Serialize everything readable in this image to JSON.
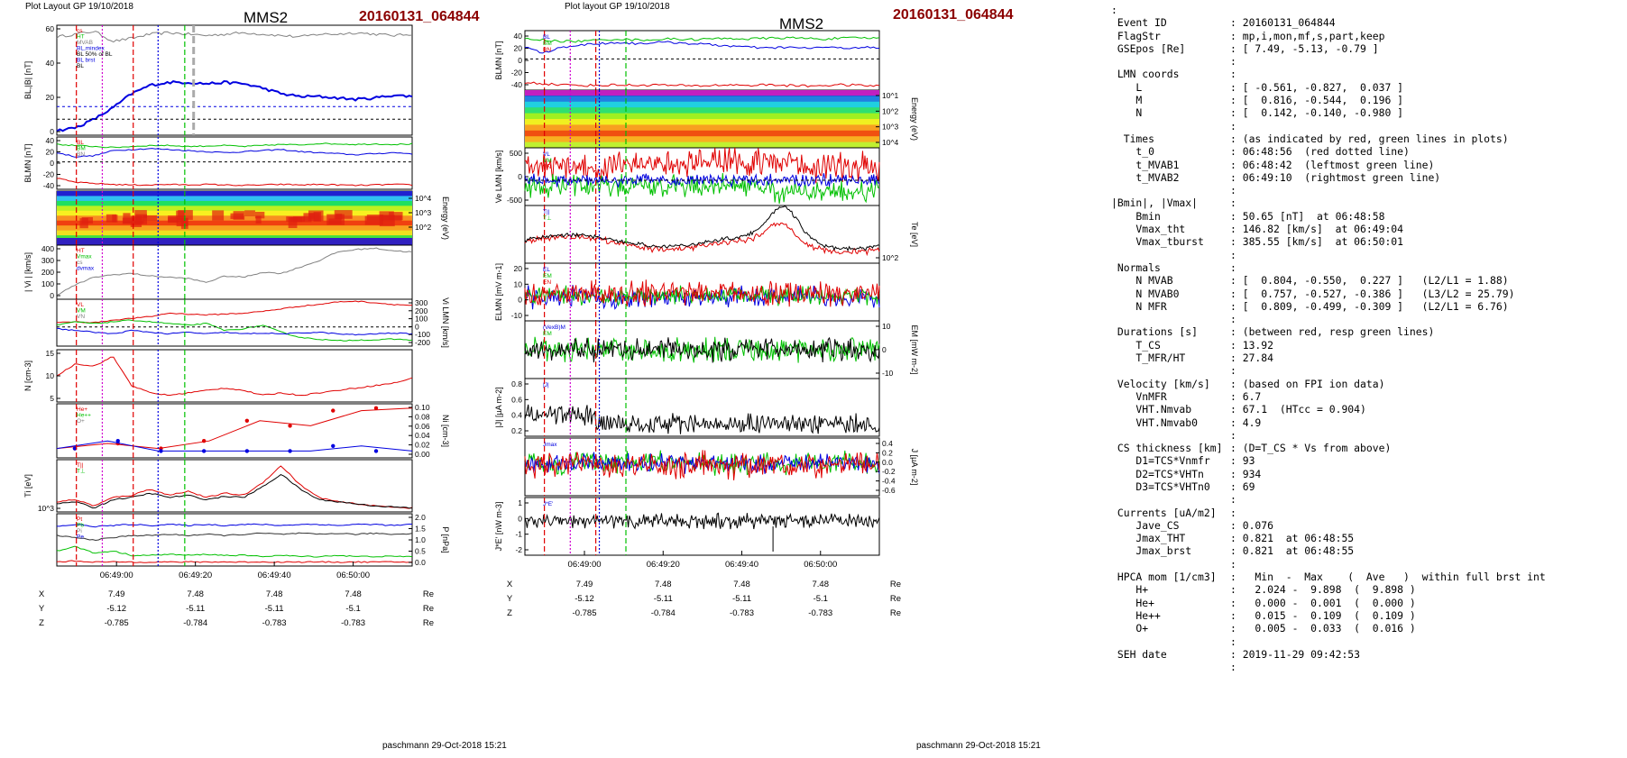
{
  "left_panel": {
    "header": "Plot Layout GP 19/10/2018",
    "spacecraft": "MMS2",
    "event": "20160131_064844",
    "footer": "paschmann 29-Oct-2018 15:21"
  },
  "middle_panel": {
    "header": "Plot layout GP 19/10/2018",
    "spacecraft": "MMS2",
    "event": "20160131_064844",
    "footer": "paschmann 29-Oct-2018 15:21"
  },
  "time_ticks": [
    "06:49:00",
    "06:49:20",
    "06:49:40",
    "06:50:00"
  ],
  "ephemeris": {
    "labels": [
      "X",
      "Y",
      "Z"
    ],
    "unit": "Re",
    "left_values": [
      [
        "7.49",
        "7.48",
        "7.48",
        "7.48"
      ],
      [
        "-5.12",
        "-5.11",
        "-5.11",
        "-5.1"
      ],
      [
        "-0.785",
        "-0.784",
        "-0.783",
        "-0.783"
      ]
    ],
    "middle_values": [
      [
        "7.49",
        "7.48",
        "7.48",
        "7.48"
      ],
      [
        "-5.12",
        "-5.11",
        "-5.11",
        "-5.1"
      ],
      [
        "-0.785",
        "-0.784",
        "-0.783",
        "-0.783"
      ]
    ]
  },
  "colors": {
    "event": "#8b0000",
    "red": "#e00000",
    "green": "#00c000",
    "blue": "#0000e0",
    "magenta": "#d000d0",
    "grey": "#808080"
  },
  "chart_data": [
    {
      "type": "line",
      "panel": "left-1",
      "ylabel": "BL,|B| [nT]",
      "ylim": [
        -10,
        65
      ],
      "ticks": [
        "0",
        "20",
        "40",
        "60"
      ],
      "legend": [
        "cs",
        "HT",
        "MVAB",
        "BL,mindex",
        "BL 50% of BL",
        "BL brst",
        "BL"
      ],
      "series": [
        {
          "name": "|B|",
          "values": [
            58,
            60,
            62,
            55,
            57,
            60,
            61,
            60,
            59,
            60,
            61,
            60,
            59,
            58,
            60,
            60,
            61,
            60,
            59,
            60
          ]
        },
        {
          "name": "BL",
          "values": [
            -8,
            -6,
            0,
            8,
            18,
            24,
            26,
            26,
            25,
            26,
            25,
            22,
            18,
            16,
            16,
            15,
            14,
            15,
            17,
            16
          ]
        }
      ]
    },
    {
      "type": "line",
      "panel": "left-2",
      "ylabel": "BLMN [nT]",
      "ylim": [
        -50,
        45
      ],
      "ticks": [
        "-40",
        "-20",
        "0",
        "20",
        "40"
      ],
      "legend": [
        "BL",
        "BM",
        "BN"
      ],
      "series": [
        {
          "name": "BL",
          "values": [
            18,
            10,
            12,
            22,
            24,
            26,
            24,
            22,
            20,
            18,
            20,
            22,
            24,
            20,
            18,
            16,
            14,
            16,
            18,
            16
          ]
        },
        {
          "name": "BM",
          "values": [
            34,
            32,
            30,
            28,
            30,
            32,
            32,
            30,
            31,
            32,
            30,
            32,
            34,
            33,
            36,
            35,
            34,
            35,
            34,
            35
          ]
        },
        {
          "name": "BN",
          "values": [
            -32,
            -40,
            -42,
            -44,
            -45,
            -45,
            -44,
            -45,
            -44,
            -45,
            -46,
            -45,
            -44,
            -45,
            -44,
            -45,
            -46,
            -45,
            -44,
            -45
          ]
        }
      ]
    },
    {
      "type": "heatmap",
      "panel": "left-3",
      "ylabel": "Energy (eV)",
      "ticks": [
        "10^4",
        "10^3",
        "10^2"
      ]
    },
    {
      "type": "line",
      "panel": "left-4",
      "ylabel": "| Vi | [km/s]",
      "ylim": [
        0,
        400
      ],
      "ticks": [
        "0",
        "100",
        "200",
        "300",
        "400"
      ],
      "legend": [
        "HT",
        "Vmax",
        "cs",
        "dvmax"
      ],
      "series": [
        {
          "name": "|Vi|",
          "values": [
            20,
            100,
            160,
            180,
            190,
            170,
            160,
            150,
            120,
            170,
            160,
            200,
            190,
            240,
            290,
            360,
            380,
            390,
            370,
            360
          ]
        }
      ]
    },
    {
      "type": "line",
      "panel": "left-5",
      "ylabel": "Vi LMN [km/s]",
      "ylim": [
        -200,
        300
      ],
      "ticks": [
        "-200",
        "-100",
        "0",
        "100",
        "200",
        "300"
      ],
      "legend": [
        "VL",
        "VM",
        "VN"
      ],
      "series": [
        {
          "name": "VL",
          "values": [
            50,
            60,
            50,
            80,
            100,
            120,
            160,
            150,
            140,
            150,
            160,
            180,
            210,
            240,
            260,
            290,
            300,
            280,
            260,
            250
          ]
        },
        {
          "name": "VM",
          "values": [
            20,
            60,
            40,
            60,
            80,
            60,
            40,
            20,
            40,
            -40,
            -20,
            20,
            -60,
            -120,
            -140,
            -160,
            -150,
            -150,
            -140,
            -150
          ]
        },
        {
          "name": "VN",
          "values": [
            -20,
            -40,
            -60,
            -80,
            -40,
            -60,
            -80,
            -60,
            -80,
            -60,
            -80,
            -70,
            -80,
            -70,
            -60,
            -80,
            -90,
            -80,
            -70,
            -80
          ]
        }
      ]
    },
    {
      "type": "line",
      "panel": "left-6",
      "ylabel": "N [cm-3]",
      "ylim": [
        0,
        20
      ],
      "ticks": [
        "5",
        "10",
        "15"
      ],
      "series": [
        {
          "name": "N",
          "values": [
            10,
            15,
            14,
            18,
            6,
            3,
            2,
            3,
            4,
            5,
            4,
            2,
            3,
            2,
            3,
            4,
            5,
            6,
            7,
            9
          ]
        }
      ]
    },
    {
      "type": "line",
      "panel": "left-7",
      "ylabel": "Ni [cm-3]",
      "ylim": [
        0,
        0.1
      ],
      "ticks": [
        "0.00",
        "0.02",
        "0.04",
        "0.06",
        "0.08",
        "0.10"
      ],
      "legend": [
        "He+",
        "He++",
        "O+"
      ],
      "series": [
        {
          "name": "He++",
          "values": [
            0.015,
            0.025,
            0.015,
            0.03,
            0.07,
            0.06,
            0.09,
            0.095
          ]
        },
        {
          "name": "O+",
          "values": [
            0.015,
            0.03,
            0.01,
            0.01,
            0.01,
            0.01,
            0.02,
            0.01
          ]
        }
      ]
    },
    {
      "type": "line",
      "panel": "left-8",
      "ylabel": "Ti [eV]",
      "ticks": [
        "10^3"
      ],
      "legend": [
        "T||",
        "T⊥"
      ],
      "series": [
        {
          "name": "Ti par",
          "values": [
            700,
            800,
            500,
            900,
            1000,
            1300,
            1000,
            1200,
            900,
            1100,
            1000,
            1600,
            2400,
            1500,
            900,
            700,
            600,
            500,
            450,
            400
          ]
        },
        {
          "name": "Ti perp",
          "values": [
            600,
            700,
            400,
            800,
            900,
            1100,
            900,
            1000,
            800,
            950,
            900,
            1400,
            2000,
            1300,
            800,
            700,
            600,
            500,
            450,
            400
          ]
        }
      ]
    },
    {
      "type": "line",
      "panel": "left-9",
      "ylabel": "P [nPa]",
      "ylim": [
        0,
        2.2
      ],
      "ticks": [
        "0.0",
        "0.5",
        "1.0",
        "1.5",
        "2.0"
      ],
      "legend": [
        "Pt",
        "Pb",
        "Pi",
        "Pe"
      ],
      "series": [
        {
          "name": "Ptot",
          "values": [
            1.7,
            1.8,
            1.7,
            1.75,
            1.8,
            1.75,
            1.8,
            1.75,
            1.8,
            1.75,
            1.8,
            1.8,
            1.75,
            1.8,
            1.8,
            1.75,
            1.8,
            1.8,
            1.75,
            1.8
          ]
        },
        {
          "name": "Pb",
          "values": [
            1.3,
            1.2,
            1.1,
            1.2,
            1.3,
            1.3,
            1.35,
            1.3,
            1.35,
            1.3,
            1.35,
            1.4,
            1.35,
            1.4,
            1.35,
            1.4,
            1.35,
            1.4,
            1.35,
            1.4
          ]
        },
        {
          "name": "Pi",
          "values": [
            0.6,
            0.8,
            0.5,
            0.6,
            0.4,
            0.4,
            0.45,
            0.4,
            0.45,
            0.4,
            0.4,
            0.35,
            0.4,
            0.35,
            0.35,
            0.4,
            0.35,
            0.35,
            0.35,
            0.35
          ]
        },
        {
          "name": "Pe",
          "values": [
            0.1,
            0.15,
            0.1,
            0.1,
            0.1,
            0.1,
            0.1,
            0.1,
            0.1,
            0.1,
            0.1,
            0.1,
            0.1,
            0.1,
            0.1,
            0.1,
            0.1,
            0.1,
            0.1,
            0.1
          ]
        }
      ]
    },
    {
      "type": "line",
      "panel": "mid-1",
      "ylabel": "BLMN [nT]",
      "ylim": [
        -50,
        45
      ],
      "ticks": [
        "-40",
        "-20",
        "0",
        "20",
        "40"
      ],
      "legend": [
        "BL",
        "BM",
        "BN"
      ],
      "series": [
        {
          "name": "BL",
          "values": [
            20,
            10,
            20,
            24,
            26,
            28,
            26,
            28,
            28,
            26,
            24,
            22,
            20,
            18,
            20,
            18,
            20,
            18,
            20,
            18
          ]
        },
        {
          "name": "BM",
          "values": [
            34,
            32,
            30,
            30,
            32,
            34,
            32,
            33,
            34,
            33,
            34,
            35,
            34,
            35,
            36,
            35,
            34,
            35,
            36,
            35
          ]
        },
        {
          "name": "BN",
          "values": [
            -40,
            -42,
            -44,
            -45,
            -45,
            -44,
            -45,
            -44,
            -45,
            -46,
            -45,
            -44,
            -45,
            -44,
            -45,
            -46,
            -45,
            -44,
            -45,
            -46
          ]
        }
      ]
    },
    {
      "type": "heatmap",
      "panel": "mid-2",
      "ylabel": "Energy (eV)",
      "ticks": [
        "10^4",
        "10^3",
        "10^2",
        "10^1"
      ]
    },
    {
      "type": "line",
      "panel": "mid-3",
      "ylabel": "Ve LMN [km/s]",
      "ylim": [
        -700,
        800
      ],
      "ticks": [
        "-500",
        "0",
        "500"
      ],
      "legend": [
        "VL",
        "VM",
        "VN"
      ]
    },
    {
      "type": "line",
      "panel": "mid-4",
      "ylabel": "Te [eV]",
      "ticks": [
        "10^2"
      ],
      "legend": [
        "T||",
        "T⊥"
      ]
    },
    {
      "type": "line",
      "panel": "mid-5",
      "ylabel": "ELMN [mV m-1]",
      "ylim": [
        -22,
        22
      ],
      "ticks": [
        "-10",
        "0",
        "10",
        "20"
      ],
      "legend": [
        "EL",
        "EM",
        "EN"
      ]
    },
    {
      "type": "line",
      "panel": "mid-6",
      "ylabel": "EM [mV m-2]",
      "ylim": [
        -15,
        15
      ],
      "ticks": [
        "-10",
        "0",
        "10"
      ],
      "legend": [
        "(VexB)M",
        "EM"
      ]
    },
    {
      "type": "line",
      "panel": "mid-7",
      "ylabel": "|J| [µA m-2]",
      "ylim": [
        0,
        0.85
      ],
      "ticks": [
        "0.2",
        "0.4",
        "0.6",
        "0.8"
      ],
      "legend": [
        "|J|"
      ]
    },
    {
      "type": "line",
      "panel": "mid-8",
      "ylabel": "J [µA m-2]",
      "ylim": [
        -0.7,
        0.5
      ],
      "ticks": [
        "-0.6",
        "-0.4",
        "-0.2",
        "0.0",
        "0.2",
        "0.4"
      ],
      "legend": [
        "Jmax"
      ]
    },
    {
      "type": "line",
      "panel": "mid-9",
      "ylabel": "J*E' [nW m-3]",
      "ylim": [
        -2.5,
        1.5
      ],
      "ticks": [
        "-2",
        "-1",
        "0",
        "1"
      ],
      "legend": [
        "J*E'"
      ]
    }
  ],
  "info": [
    {
      "k": ":",
      "c": ""
    },
    {
      "k": " Event ID",
      "c": ": 20160131_064844"
    },
    {
      "k": " FlagStr",
      "c": ": mp,i,mon,mf,s,part,keep"
    },
    {
      "k": " GSEpos [Re]",
      "c": ": [ 7.49, -5.13, -0.79 ]"
    },
    {
      "k": "",
      "c": ":"
    },
    {
      "k": " LMN coords",
      "c": ":"
    },
    {
      "k": "    L",
      "c": ": [ -0.561, -0.827,  0.037 ]"
    },
    {
      "k": "    M",
      "c": ": [  0.816, -0.544,  0.196 ]"
    },
    {
      "k": "    N",
      "c": ": [  0.142, -0.140, -0.980 ]"
    },
    {
      "k": "",
      "c": ":"
    },
    {
      "k": "  Times",
      "c": ": (as indicated by red, green lines in plots)"
    },
    {
      "k": "    t_0",
      "c": ": 06:48:56  (red dotted line)"
    },
    {
      "k": "    t_MVAB1",
      "c": ": 06:48:42  (leftmost green line)"
    },
    {
      "k": "    t_MVAB2",
      "c": ": 06:49:10  (rightmost green line)"
    },
    {
      "k": "",
      "c": ":"
    },
    {
      "k": "|Bmin|, |Vmax|",
      "c": ":"
    },
    {
      "k": "    Bmin",
      "c": ": 50.65 [nT]  at 06:48:58"
    },
    {
      "k": "    Vmax_tht",
      "c": ": 146.82 [km/s]  at 06:49:04"
    },
    {
      "k": "    Vmax_tburst",
      "c": ": 385.55 [km/s]  at 06:50:01"
    },
    {
      "k": "",
      "c": ":"
    },
    {
      "k": " Normals",
      "c": ":"
    },
    {
      "k": "    N MVAB",
      "c": ": [  0.804, -0.550,  0.227 ]   (L2/L1 = 1.88)"
    },
    {
      "k": "    N MVAB0",
      "c": ": [  0.757, -0.527, -0.386 ]   (L3/L2 = 25.79)"
    },
    {
      "k": "    N MFR",
      "c": ": [  0.809, -0.499, -0.309 ]   (L2/L1 = 6.76)"
    },
    {
      "k": "",
      "c": ":"
    },
    {
      "k": " Durations [s]",
      "c": ": (between red, resp green lines)"
    },
    {
      "k": "    T_CS",
      "c": ": 13.92"
    },
    {
      "k": "    T_MFR/HT",
      "c": ": 27.84"
    },
    {
      "k": "",
      "c": ":"
    },
    {
      "k": " Velocity [km/s]",
      "c": ": (based on FPI ion data)"
    },
    {
      "k": "    VnMFR",
      "c": ": 6.7"
    },
    {
      "k": "    VHT.Nmvab",
      "c": ": 67.1  (HTcc = 0.904)"
    },
    {
      "k": "    VHT.Nmvab0",
      "c": ": 4.9"
    },
    {
      "k": "",
      "c": ":"
    },
    {
      "k": " CS thickness [km]",
      "c": ": (D=T_CS * Vs from above)"
    },
    {
      "k": "    D1=TCS*Vnmfr",
      "c": ": 93"
    },
    {
      "k": "    D2=TCS*VHTn",
      "c": ": 934"
    },
    {
      "k": "    D3=TCS*VHTn0",
      "c": ": 69"
    },
    {
      "k": "",
      "c": ":"
    },
    {
      "k": " Currents [uA/m2]",
      "c": ":"
    },
    {
      "k": "    Jave_CS",
      "c": ": 0.076"
    },
    {
      "k": "    Jmax_THT",
      "c": ": 0.821  at 06:48:55"
    },
    {
      "k": "    Jmax_brst",
      "c": ": 0.821  at 06:48:55"
    },
    {
      "k": "",
      "c": ":"
    },
    {
      "k": " HPCA mom [1/cm3]",
      "c": ":   Min  -  Max    (  Ave   )  within full brst int"
    },
    {
      "k": "    H+",
      "c": ":   2.024 -  9.898  (  9.898 )"
    },
    {
      "k": "    He+",
      "c": ":   0.000 -  0.001  (  0.000 )"
    },
    {
      "k": "    He++",
      "c": ":   0.015 -  0.109  (  0.109 )"
    },
    {
      "k": "    O+",
      "c": ":   0.005 -  0.033  (  0.016 )"
    },
    {
      "k": "",
      "c": ":"
    },
    {
      "k": " SEH date",
      "c": ": 2019-11-29 09:42:53"
    },
    {
      "k": "",
      "c": ":"
    }
  ]
}
